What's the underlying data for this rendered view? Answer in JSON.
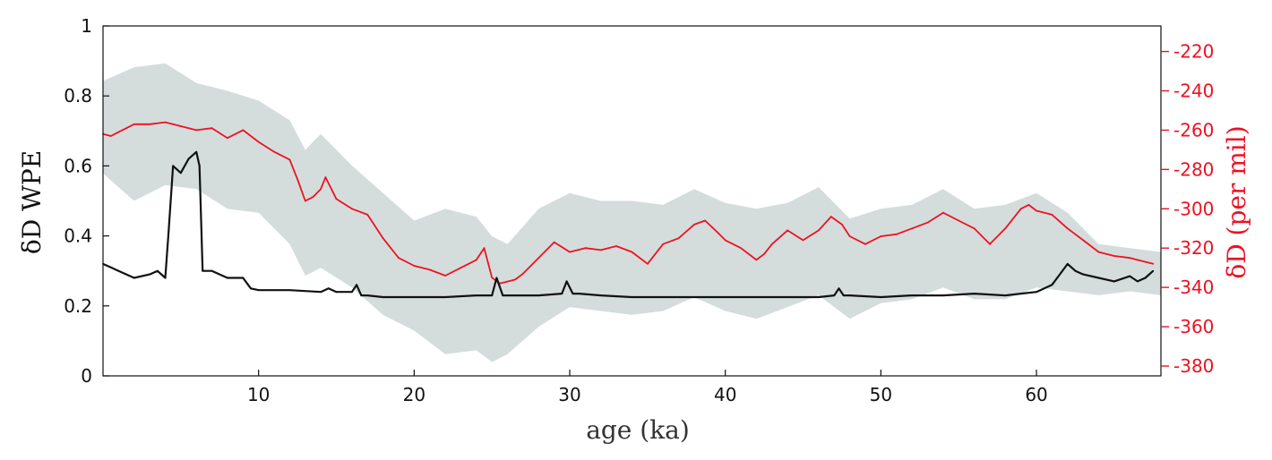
{
  "chart_data": {
    "type": "line",
    "title": "",
    "xlabel": "age (ka)",
    "ylabel_left": "δD WPE",
    "ylabel_right": "δD (per mil)",
    "xlim": [
      0,
      68
    ],
    "ylim_left": [
      0,
      1
    ],
    "ylim_right": [
      -385,
      -207
    ],
    "x_ticks": [
      10,
      20,
      30,
      40,
      50,
      60
    ],
    "y_ticks_left": [
      0,
      0.2,
      0.4,
      0.6,
      0.8,
      1
    ],
    "y_ticks_left_labels": [
      "0",
      "0.2",
      "0.4",
      "0.6",
      "0.8",
      "1"
    ],
    "y_ticks_right": [
      -220,
      -240,
      -260,
      -280,
      -300,
      -320,
      -340,
      -360,
      -380
    ],
    "grid": false,
    "colors": {
      "wpe": "#111111",
      "deltaD": "#ee1122",
      "band": "#c6d2d0",
      "right_axis": "#ee1122"
    },
    "series": [
      {
        "axis": "right",
        "style": "band",
        "x": [
          0,
          2,
          4,
          6,
          8,
          10,
          12,
          13,
          14,
          16,
          18,
          20,
          22,
          24,
          25,
          26,
          28,
          30,
          32,
          34,
          36,
          38,
          40,
          42,
          44,
          46,
          48,
          50,
          52,
          54,
          56,
          58,
          60,
          62,
          64,
          66,
          68
        ],
        "upper": [
          -235,
          -228,
          -226,
          -236,
          -240,
          -245,
          -255,
          -270,
          -262,
          -278,
          -292,
          -306,
          -300,
          -304,
          -314,
          -318,
          -300,
          -292,
          -296,
          -296,
          -298,
          -290,
          -297,
          -300,
          -297,
          -289,
          -305,
          -300,
          -298,
          -290,
          -300,
          -298,
          -292,
          -302,
          -318,
          -320,
          -322
        ],
        "lower": [
          -282,
          -296,
          -288,
          -290,
          -300,
          -302,
          -318,
          -334,
          -330,
          -340,
          -354,
          -362,
          -374,
          -372,
          -378,
          -374,
          -360,
          -350,
          -352,
          -354,
          -352,
          -345,
          -352,
          -356,
          -350,
          -344,
          -356,
          -348,
          -346,
          -340,
          -346,
          -346,
          -340,
          -342,
          -344,
          -342,
          -344
        ]
      },
      {
        "axis": "right",
        "x": [
          0,
          0.5,
          1,
          1.5,
          2,
          3,
          4,
          5,
          6,
          7,
          8,
          9,
          10,
          11,
          12,
          12.5,
          13,
          13.5,
          14,
          14.3,
          15,
          16,
          17,
          18,
          19,
          20,
          21,
          22,
          23,
          24,
          24.5,
          25,
          25.5,
          26,
          26.5,
          27,
          28,
          29,
          30,
          31,
          32,
          33,
          34,
          35,
          36,
          37,
          38,
          38.7,
          39.5,
          40,
          41,
          42,
          42.5,
          43,
          44,
          45,
          46,
          46.8,
          47.5,
          48,
          49,
          50,
          51,
          52,
          53,
          54,
          55,
          56,
          57,
          58,
          59,
          59.5,
          60,
          61,
          62,
          63,
          64,
          65,
          66,
          67,
          67.5
        ],
        "values": [
          -262,
          -263,
          -261,
          -259,
          -257,
          -257,
          -256,
          -258,
          -260,
          -259,
          -264,
          -260,
          -266,
          -271,
          -275,
          -285,
          -296,
          -294,
          -290,
          -284,
          -295,
          -300,
          -303,
          -315,
          -325,
          -329,
          -331,
          -334,
          -330,
          -326,
          -320,
          -335,
          -338,
          -337,
          -336,
          -333,
          -325,
          -317,
          -322,
          -320,
          -321,
          -319,
          -322,
          -328,
          -318,
          -315,
          -308,
          -306,
          -312,
          -316,
          -320,
          -326,
          -323,
          -318,
          -311,
          -316,
          -311,
          -304,
          -308,
          -314,
          -318,
          -314,
          -313,
          -310,
          -307,
          -302,
          -306,
          -310,
          -318,
          -310,
          -300,
          -298,
          -301,
          -303,
          -310,
          -316,
          -322,
          -324,
          -325,
          -327,
          -328
        ]
      },
      {
        "axis": "left",
        "x": [
          0,
          0.5,
          1,
          2,
          3,
          3.5,
          4,
          4.2,
          4.5,
          5,
          5.5,
          6,
          6.2,
          6.4,
          7,
          8,
          9,
          9.5,
          10,
          12,
          14,
          14.5,
          15,
          16,
          16.3,
          16.6,
          17,
          18,
          20,
          22,
          24,
          25,
          25.3,
          25.7,
          26,
          28,
          29.5,
          29.8,
          30.2,
          30.6,
          32,
          34,
          36,
          38,
          40,
          42,
          44,
          46,
          47,
          47.3,
          47.6,
          48,
          50,
          52,
          54,
          56,
          58,
          59,
          60,
          61,
          61.5,
          62,
          62.5,
          63,
          64,
          65,
          66,
          66.5,
          67,
          67.5
        ],
        "values": [
          0.32,
          0.31,
          0.3,
          0.28,
          0.29,
          0.3,
          0.28,
          0.4,
          0.6,
          0.58,
          0.62,
          0.64,
          0.6,
          0.3,
          0.3,
          0.28,
          0.28,
          0.25,
          0.245,
          0.245,
          0.24,
          0.25,
          0.24,
          0.24,
          0.26,
          0.23,
          0.23,
          0.225,
          0.225,
          0.225,
          0.23,
          0.23,
          0.28,
          0.23,
          0.23,
          0.23,
          0.235,
          0.27,
          0.235,
          0.235,
          0.23,
          0.225,
          0.225,
          0.225,
          0.225,
          0.225,
          0.225,
          0.225,
          0.23,
          0.25,
          0.23,
          0.23,
          0.225,
          0.23,
          0.23,
          0.235,
          0.23,
          0.235,
          0.24,
          0.26,
          0.29,
          0.32,
          0.3,
          0.29,
          0.28,
          0.27,
          0.285,
          0.27,
          0.28,
          0.3
        ]
      }
    ]
  }
}
